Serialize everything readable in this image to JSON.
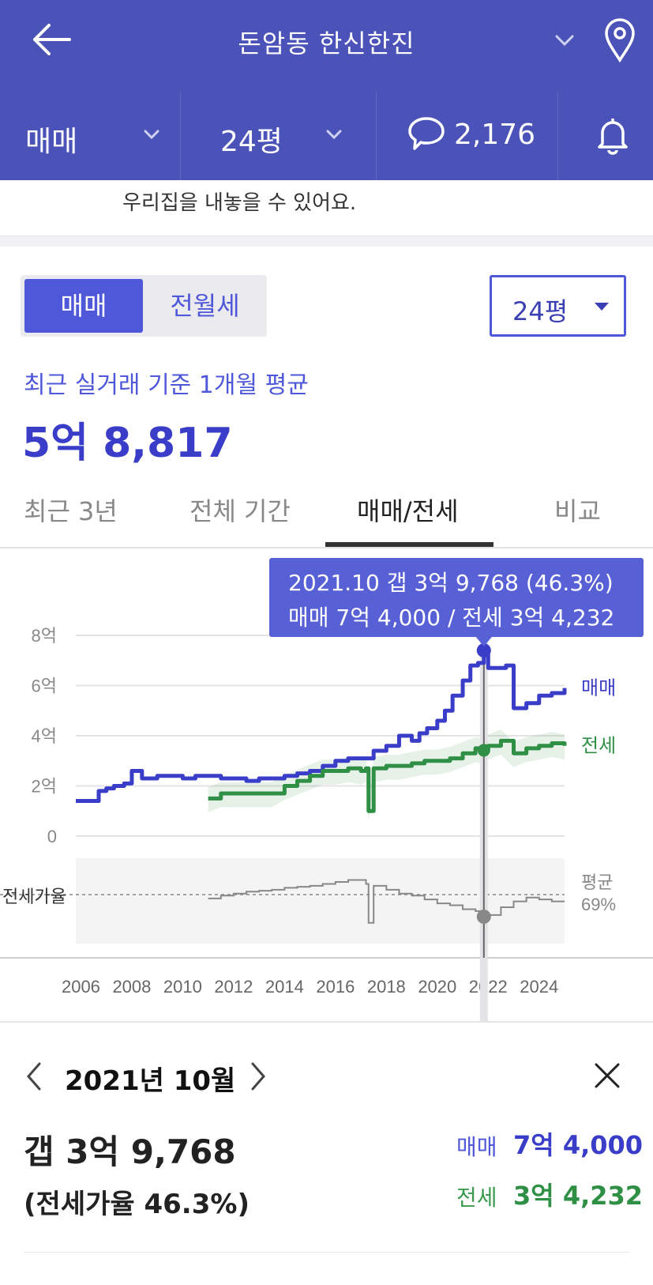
{
  "header": {
    "title": "돈암동 한신한진",
    "colors": {
      "bar": "#4b52b8",
      "accent": "#4f58d8"
    }
  },
  "subbar": {
    "trade_type": "매매",
    "size": "24평",
    "comment_count": "2,176"
  },
  "notice": "우리집을 내놓을 수 있어요.",
  "controls": {
    "segment_active": "매매",
    "segment_inactive": "전월세",
    "size_select": "24평"
  },
  "summary": {
    "label": "최근 실거래 기준 1개월 평균",
    "value": "5억 8,817"
  },
  "tabs": [
    "최근 3년",
    "전체 기간",
    "매매/전세",
    "비교"
  ],
  "active_tab": "매매/전세",
  "tooltip": {
    "line1": "2021.10  갭 3억 9,768 (46.3%)",
    "line2": "매매 7억 4,000 / 전세 3억 4,232"
  },
  "chart_data": {
    "type": "line",
    "x_ticks": [
      "2006",
      "2008",
      "2010",
      "2012",
      "2014",
      "2016",
      "2018",
      "2020",
      "2022",
      "2024"
    ],
    "y_ticks": [
      "8억",
      "6억",
      "4억",
      "2억",
      "0"
    ],
    "ylim": [
      0,
      8
    ],
    "lower_panel_label": "전세가율",
    "avg_label": "평균",
    "avg_value": "69%",
    "selected_x": 2021.83,
    "series": [
      {
        "name": "매매",
        "color": "#3a3dc8",
        "x": [
          2005.8,
          2006.3,
          2006.7,
          2007.0,
          2007.3,
          2007.7,
          2008.0,
          2008.4,
          2008.7,
          2009.0,
          2009.4,
          2010.0,
          2010.5,
          2011.0,
          2011.5,
          2012.0,
          2012.5,
          2013.0,
          2013.5,
          2014.0,
          2014.5,
          2015.0,
          2015.5,
          2016.0,
          2016.5,
          2017.0,
          2017.5,
          2018.0,
          2018.5,
          2019.0,
          2019.3,
          2019.6,
          2020.0,
          2020.3,
          2020.6,
          2021.0,
          2021.3,
          2021.6,
          2021.83,
          2022.0,
          2022.3,
          2022.7,
          2023.0,
          2023.5,
          2024.0,
          2024.5,
          2025.0
        ],
        "y": [
          1.4,
          1.4,
          1.8,
          1.9,
          2.0,
          2.1,
          2.6,
          2.3,
          2.3,
          2.4,
          2.4,
          2.3,
          2.4,
          2.4,
          2.3,
          2.3,
          2.2,
          2.3,
          2.3,
          2.4,
          2.5,
          2.6,
          2.8,
          3.0,
          3.1,
          3.1,
          3.4,
          3.6,
          4.0,
          3.8,
          4.1,
          4.3,
          4.6,
          5.0,
          5.6,
          6.2,
          6.8,
          6.9,
          7.4,
          6.7,
          6.7,
          6.8,
          5.1,
          5.3,
          5.6,
          5.7,
          5.9
        ]
      },
      {
        "name": "전세",
        "color": "#2f8f45",
        "x": [
          2011.0,
          2011.5,
          2012.0,
          2012.5,
          2013.0,
          2013.5,
          2014.0,
          2014.5,
          2015.0,
          2015.5,
          2016.0,
          2016.5,
          2017.0,
          2017.2,
          2017.3,
          2017.5,
          2018.0,
          2018.5,
          2019.0,
          2019.5,
          2020.0,
          2020.5,
          2021.0,
          2021.5,
          2021.83,
          2022.0,
          2022.5,
          2023.0,
          2023.5,
          2024.0,
          2024.5,
          2025.0
        ],
        "y": [
          1.5,
          1.7,
          1.7,
          1.7,
          1.7,
          1.7,
          2.0,
          2.2,
          2.4,
          2.6,
          2.6,
          2.7,
          2.6,
          2.7,
          1.0,
          2.7,
          2.8,
          2.8,
          2.9,
          3.0,
          3.0,
          3.1,
          3.3,
          3.5,
          3.42,
          3.6,
          3.8,
          3.3,
          3.5,
          3.6,
          3.7,
          3.6
        ]
      },
      {
        "name": "전세가율",
        "color": "#888888",
        "x": [
          2011.0,
          2011.5,
          2012.0,
          2012.5,
          2013.0,
          2013.5,
          2014.0,
          2014.5,
          2015.0,
          2015.5,
          2016.0,
          2016.5,
          2017.0,
          2017.2,
          2017.3,
          2017.5,
          2018.0,
          2018.5,
          2019.0,
          2019.5,
          2020.0,
          2020.5,
          2021.0,
          2021.5,
          2021.83,
          2022.0,
          2022.5,
          2023.0,
          2023.5,
          2024.0,
          2024.5,
          2025.0
        ],
        "y": [
          65,
          68,
          70,
          72,
          73,
          74,
          76,
          77,
          78,
          80,
          82,
          84,
          84,
          80,
          40,
          78,
          74,
          70,
          68,
          64,
          60,
          58,
          54,
          52,
          46.3,
          48,
          56,
          62,
          66,
          64,
          62,
          62
        ]
      }
    ]
  },
  "detail": {
    "date": "2021년 10월",
    "gap": "갭 3억 9,768",
    "rate": "(전세가율 46.3%)",
    "sale_label": "매매",
    "sale_value": "7억 4,000",
    "jeonse_label": "전세",
    "jeonse_value": "3억 4,232"
  }
}
